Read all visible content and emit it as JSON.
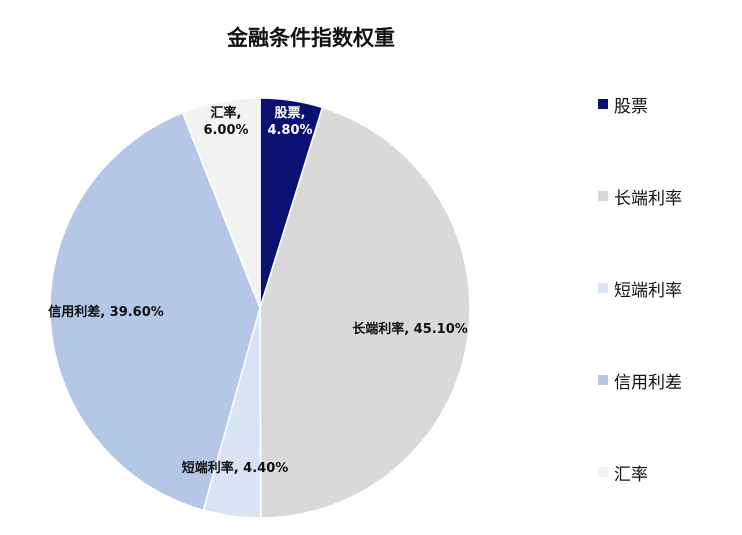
{
  "chart_data": {
    "type": "pie",
    "title": "金融条件指数权重",
    "slices": [
      {
        "name": "股票",
        "value": 4.8,
        "label_name": "股票,",
        "label_value": "4.80%",
        "color": "#0a1172",
        "label_color": "#ffffff"
      },
      {
        "name": "长端利率",
        "value": 45.1,
        "label_name": "长端利率,",
        "label_value": "45.10%",
        "color": "#d9d9d9",
        "label_color": "#111111"
      },
      {
        "name": "短端利率",
        "value": 4.4,
        "label_name": "短端利率,",
        "label_value": "4.40%",
        "color": "#dae3f3",
        "label_color": "#111111"
      },
      {
        "name": "信用利差",
        "value": 39.6,
        "label_name": "信用利差,",
        "label_value": "39.60%",
        "color": "#b4c7e7",
        "label_color": "#111111"
      },
      {
        "name": "汇率",
        "value": 6.0,
        "label_name": "汇率,",
        "label_value": "6.00%",
        "color": "#f2f2f2",
        "label_color": "#111111"
      }
    ],
    "legend_position": "right"
  }
}
